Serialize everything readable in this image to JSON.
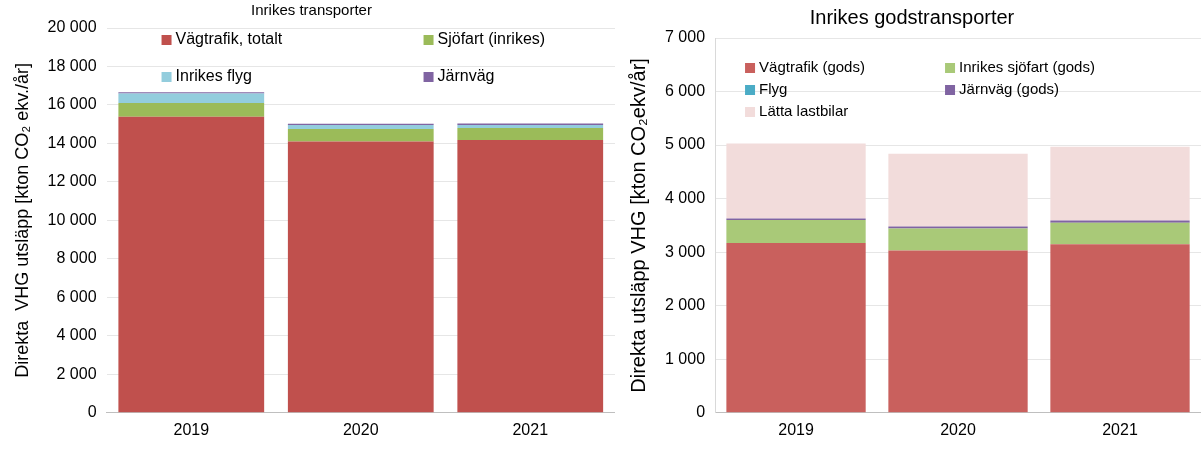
{
  "chart_data": [
    {
      "type": "bar",
      "title": "Inrikes transporter",
      "ylabel": "Direkta  VHG utsläpp [kton CO₂ ekv./år]",
      "categories": [
        "2019",
        "2020",
        "2021"
      ],
      "stacked": true,
      "grid": "y",
      "legend": "top",
      "ylim": [
        0,
        20000
      ],
      "yticks": [
        0,
        {
          "value": 2000,
          "label": "2 000"
        },
        {
          "value": 4000,
          "label": "4 000"
        },
        {
          "value": 6000,
          "label": "6 000"
        },
        {
          "value": 8000,
          "label": "8 000"
        },
        {
          "value": 10000,
          "label": "10 000"
        },
        {
          "value": 12000,
          "label": "12 000"
        },
        {
          "value": 14000,
          "label": "14 000"
        },
        {
          "value": 16000,
          "label": "16 000"
        },
        {
          "value": 18000,
          "label": "18 000"
        },
        {
          "value": 20000,
          "label": "20 000"
        }
      ],
      "series": [
        {
          "name": "Vägtrafik, totalt",
          "color": "#c0504d",
          "values": [
            15390,
            14100,
            14180
          ]
        },
        {
          "name": "Sjöfart (inrikes)",
          "color": "#9bbb59",
          "values": [
            710,
            650,
            620
          ]
        },
        {
          "name": "Inrikes flyg",
          "color": "#93cddd",
          "values": [
            490,
            210,
            160
          ]
        },
        {
          "name": "Järnväg",
          "color": "#8064a2",
          "values": [
            70,
            60,
            80
          ]
        }
      ]
    },
    {
      "type": "bar",
      "title": "Inrikes godstransporter",
      "ylabel": "Direkta utsläpp VHG [kton CO₂ekv/år]",
      "categories": [
        "2019",
        "2020",
        "2021"
      ],
      "stacked": true,
      "grid": "y",
      "legend": "top",
      "ylim": [
        0,
        7000
      ],
      "yticks": [
        0,
        {
          "value": 1000,
          "label": "1 000"
        },
        {
          "value": 2000,
          "label": "2 000"
        },
        {
          "value": 3000,
          "label": "3 000"
        },
        {
          "value": 4000,
          "label": "4 000"
        },
        {
          "value": 5000,
          "label": "5 000"
        },
        {
          "value": 6000,
          "label": "6 000"
        },
        {
          "value": 7000,
          "label": "7 000"
        }
      ],
      "series": [
        {
          "name": "Vägtrafik (gods)",
          "color": "#c9605d",
          "values": [
            3170,
            3030,
            3150
          ]
        },
        {
          "name": "Inrikes sjöfart (gods)",
          "color": "#a9c978",
          "values": [
            430,
            410,
            400
          ]
        },
        {
          "name": "Flyg",
          "color": "#4bacc6",
          "values": [
            0,
            0,
            0
          ]
        },
        {
          "name": "Järnväg (gods)",
          "color": "#8064a2",
          "values": [
            30,
            40,
            40
          ]
        },
        {
          "name": "Lätta lastbilar",
          "color": "#f2dcdb",
          "values": [
            1400,
            1360,
            1380
          ]
        }
      ]
    }
  ]
}
